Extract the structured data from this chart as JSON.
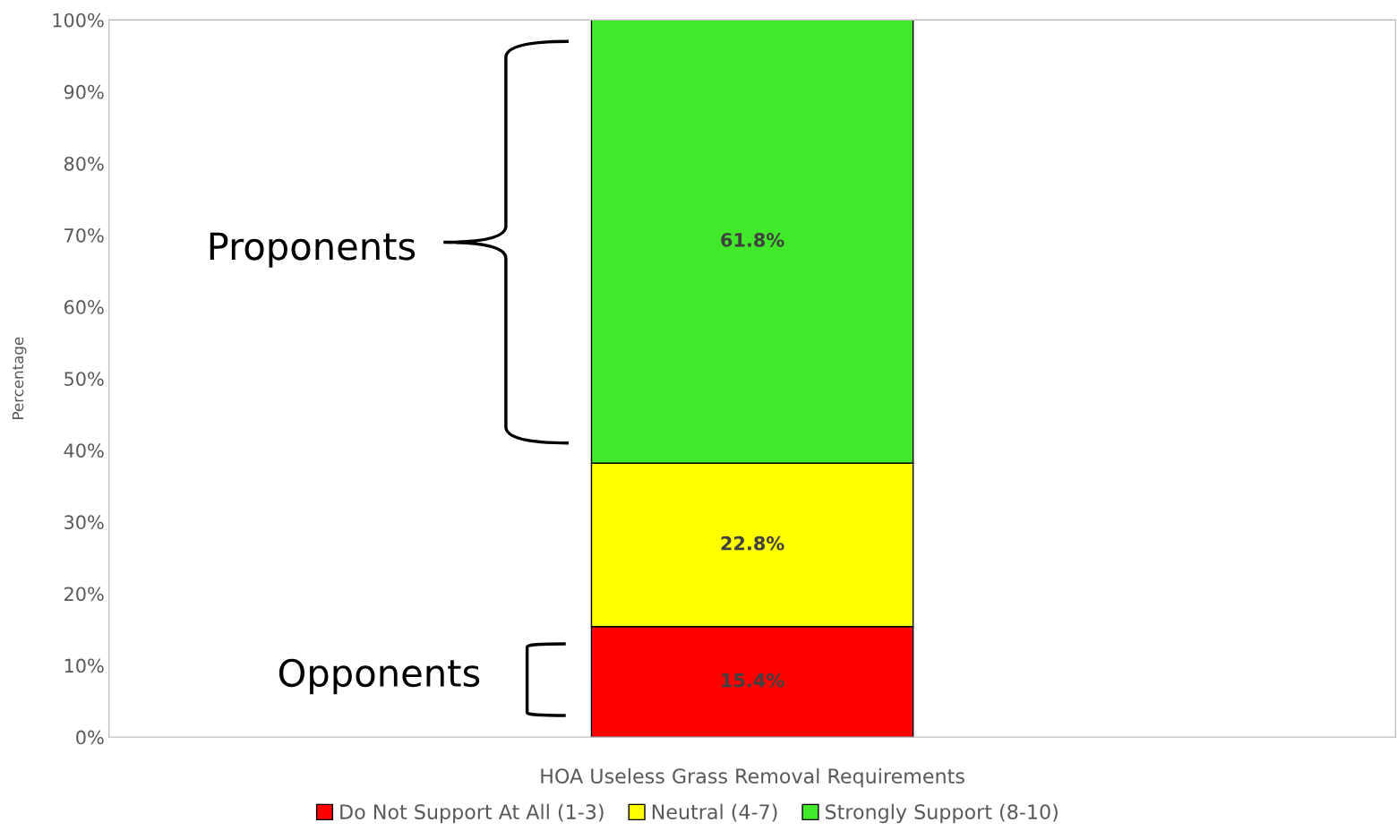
{
  "chart_data": {
    "type": "bar",
    "stacked": true,
    "categories": [
      "HOA Useless Grass Removal Requirements"
    ],
    "ylabel": "Percentage",
    "series": [
      {
        "name": "Do Not Support At All (1-3)",
        "color": "#ff0000",
        "values": [
          15.4
        ],
        "value_labels": [
          "15.4%"
        ]
      },
      {
        "name": "Neutral (4-7)",
        "color": "#ffff00",
        "values": [
          22.8
        ],
        "value_labels": [
          "22.8%"
        ]
      },
      {
        "name": "Strongly Support (8-10)",
        "color": "#42e82a",
        "values": [
          61.8
        ],
        "value_labels": [
          "61.8%"
        ]
      }
    ],
    "ylim": [
      0,
      100
    ],
    "yticks": [
      {
        "value": 0,
        "label": "0%"
      },
      {
        "value": 10,
        "label": "10%"
      },
      {
        "value": 20,
        "label": "20%"
      },
      {
        "value": 30,
        "label": "30%"
      },
      {
        "value": 40,
        "label": "40%"
      },
      {
        "value": 50,
        "label": "50%"
      },
      {
        "value": 60,
        "label": "60%"
      },
      {
        "value": 70,
        "label": "70%"
      },
      {
        "value": 80,
        "label": "80%"
      },
      {
        "value": 90,
        "label": "90%"
      },
      {
        "value": 100,
        "label": "100%"
      }
    ],
    "annotations": [
      "Proponents",
      "Opponents"
    ],
    "legend": "bottom",
    "grid": false
  }
}
